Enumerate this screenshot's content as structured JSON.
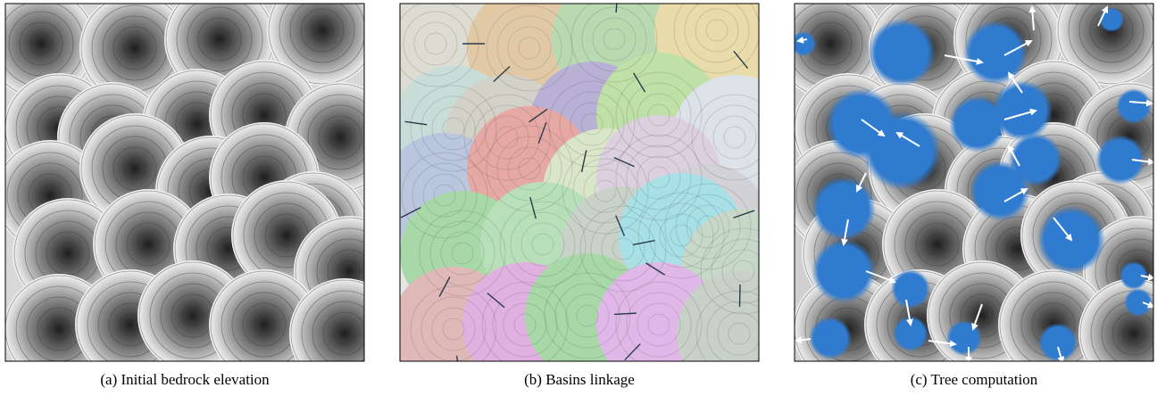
{
  "figure": {
    "panels": [
      {
        "caption": "(a) Initial bedrock elevation"
      },
      {
        "caption": "(b) Basins linkage"
      },
      {
        "caption": "(c) Tree computation"
      }
    ]
  }
}
